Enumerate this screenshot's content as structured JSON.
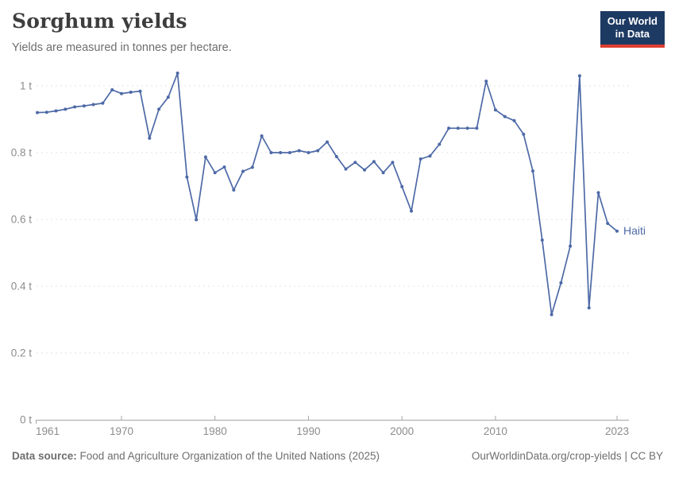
{
  "header": {
    "title": "Sorghum yields",
    "subtitle": "Yields are measured in tonnes per hectare."
  },
  "logo": {
    "line1": "Our World",
    "line2": "in Data"
  },
  "chart_data": {
    "type": "line",
    "title": "Sorghum yields",
    "ylabel": "tonnes per hectare",
    "xlim": [
      1961,
      2023
    ],
    "ylim": [
      0,
      1.05
    ],
    "grid": "horizontal-dashed",
    "legend_position": "end-of-line-label",
    "x_ticks": [
      1961,
      1970,
      1980,
      1990,
      2000,
      2010,
      2023
    ],
    "y_ticks": [
      0,
      0.2,
      0.4,
      0.6,
      0.8,
      1
    ],
    "y_tick_suffix": " t",
    "series": [
      {
        "name": "Haiti",
        "color": "#4d69a6",
        "x": [
          1961,
          1962,
          1963,
          1964,
          1965,
          1966,
          1967,
          1968,
          1969,
          1970,
          1971,
          1972,
          1973,
          1974,
          1975,
          1976,
          1977,
          1978,
          1979,
          1980,
          1981,
          1982,
          1983,
          1984,
          1985,
          1986,
          1987,
          1988,
          1989,
          1990,
          1991,
          1992,
          1993,
          1994,
          1995,
          1996,
          1997,
          1998,
          1999,
          2000,
          2001,
          2002,
          2003,
          2004,
          2005,
          2006,
          2007,
          2008,
          2009,
          2010,
          2011,
          2012,
          2013,
          2014,
          2015,
          2016,
          2017,
          2018,
          2019,
          2020,
          2021,
          2022,
          2023
        ],
        "values": [
          0.92,
          0.921,
          0.925,
          0.93,
          0.937,
          0.94,
          0.944,
          0.948,
          0.988,
          0.977,
          0.981,
          0.984,
          0.843,
          0.93,
          0.966,
          1.038,
          0.727,
          0.599,
          0.787,
          0.74,
          0.757,
          0.688,
          0.744,
          0.756,
          0.85,
          0.8,
          0.8,
          0.8,
          0.806,
          0.8,
          0.806,
          0.832,
          0.788,
          0.751,
          0.771,
          0.748,
          0.773,
          0.74,
          0.771,
          0.698,
          0.625,
          0.781,
          0.79,
          0.825,
          0.873,
          0.873,
          0.873,
          0.873,
          1.014,
          0.928,
          0.908,
          0.896,
          0.855,
          0.745,
          0.538,
          0.315,
          0.41,
          0.52,
          1.03,
          0.335,
          0.68,
          0.588,
          0.565
        ]
      }
    ]
  },
  "colors": {
    "line": "#4d69a6",
    "grid": "#e2e2e2",
    "axis": "#a6a6a6",
    "tick_label": "#8c8c8c",
    "title": "#3d3d3d",
    "subtitle": "#6e6e6e",
    "logo_bg": "#1d3a63",
    "logo_red": "#dc3e32"
  },
  "footer": {
    "source_label": "Data source:",
    "source_text": "Food and Agriculture Organization of the United Nations (2025)",
    "url": "OurWorldinData.org/crop-yields",
    "divider": "|",
    "license": "CC BY"
  }
}
